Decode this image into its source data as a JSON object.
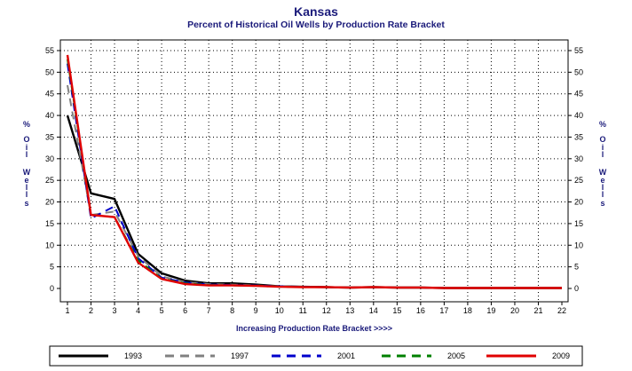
{
  "chart_data": {
    "type": "line",
    "title": "Kansas",
    "subtitle": "Percent of Historical Oil Wells by Production Rate Bracket",
    "xlabel": "Increasing Production Rate Bracket >>>>",
    "ylabel_chars": [
      "%",
      "O",
      "i",
      "l",
      "W",
      "e",
      "l",
      "l",
      "s"
    ],
    "x": [
      1,
      2,
      3,
      4,
      5,
      6,
      7,
      8,
      9,
      10,
      11,
      12,
      13,
      14,
      15,
      16,
      17,
      18,
      19,
      20,
      21,
      22
    ],
    "xlim": [
      1,
      22
    ],
    "ylim": [
      0,
      55
    ],
    "yticks": [
      0,
      5,
      10,
      15,
      20,
      25,
      30,
      35,
      40,
      45,
      50,
      55
    ],
    "grid": true,
    "legend_position": "bottom",
    "series": [
      {
        "name": "1993",
        "color": "#000000",
        "dash": "solid",
        "values": [
          40,
          22,
          20.7,
          8,
          3.5,
          1.8,
          1.2,
          1.2,
          0.9,
          0.5,
          0.4,
          0.3,
          0.2,
          0.3,
          0.2,
          0.2,
          0.1,
          0.1,
          0.1,
          0.1,
          0.1,
          0.1
        ]
      },
      {
        "name": "1997",
        "color": "#808080",
        "dash": "dash",
        "values": [
          47,
          17,
          17.8,
          7.5,
          2.8,
          1.5,
          1.0,
          0.9,
          0.7,
          0.5,
          0.4,
          0.3,
          0.2,
          0.3,
          0.2,
          0.2,
          0.1,
          0.1,
          0.1,
          0.1,
          0.1,
          0.1
        ]
      },
      {
        "name": "2001",
        "color": "#0000cc",
        "dash": "dash",
        "values": [
          52,
          16.2,
          19,
          7,
          2.5,
          1.4,
          0.9,
          0.8,
          0.7,
          0.5,
          0.4,
          0.3,
          0.2,
          0.3,
          0.2,
          0.2,
          0.1,
          0.1,
          0.1,
          0.1,
          0.1,
          0.1
        ]
      },
      {
        "name": "2005",
        "color": "#008000",
        "dash": "dash",
        "values": [
          53,
          17,
          16.5,
          6.5,
          2.3,
          1.2,
          0.8,
          0.7,
          0.6,
          0.4,
          0.3,
          0.3,
          0.2,
          0.3,
          0.2,
          0.2,
          0.1,
          0.1,
          0.1,
          0.1,
          0.1,
          0.1
        ]
      },
      {
        "name": "2009",
        "color": "#e00000",
        "dash": "solid",
        "values": [
          54,
          17,
          16.5,
          6,
          2.2,
          1.0,
          0.7,
          0.7,
          0.6,
          0.4,
          0.3,
          0.3,
          0.2,
          0.3,
          0.2,
          0.2,
          0.1,
          0.1,
          0.1,
          0.1,
          0.1,
          0.1
        ]
      }
    ]
  }
}
